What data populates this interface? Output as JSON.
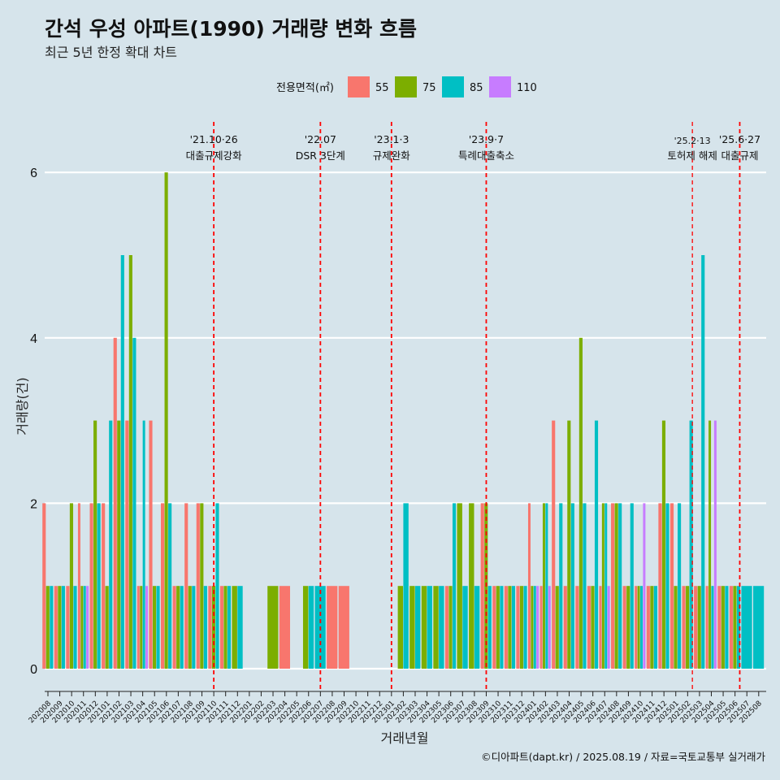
{
  "chart_data": {
    "type": "bar",
    "title": "간석 우성 아파트(1990) 거래량 변화 흐름",
    "subtitle": "최근 5년 한정 확대 차트",
    "xlabel": "거래년월",
    "ylabel": "거래량(건)",
    "ylim": [
      0,
      6.4
    ],
    "yticks": [
      0,
      2,
      4,
      6
    ],
    "legend": {
      "title": "전용면적(㎡)",
      "position": "top"
    },
    "categories": [
      "202008",
      "202009",
      "202010",
      "202011",
      "202012",
      "202101",
      "202102",
      "202103",
      "202104",
      "202105",
      "202106",
      "202107",
      "202108",
      "202109",
      "202110",
      "202111",
      "202112",
      "202201",
      "202202",
      "202203",
      "202204",
      "202205",
      "202206",
      "202207",
      "202208",
      "202209",
      "202210",
      "202211",
      "202212",
      "202301",
      "202302",
      "202303",
      "202304",
      "202305",
      "202306",
      "202307",
      "202308",
      "202309",
      "202310",
      "202311",
      "202312",
      "202401",
      "202402",
      "202403",
      "202404",
      "202405",
      "202406",
      "202407",
      "202408",
      "202409",
      "202410",
      "202411",
      "202412",
      "202501",
      "202502",
      "202503",
      "202504",
      "202505",
      "202506",
      "202507",
      "202508"
    ],
    "series": [
      {
        "name": "55",
        "color": "#f8766d",
        "values": [
          2,
          1,
          1,
          2,
          2,
          2,
          4,
          3,
          1,
          3,
          2,
          1,
          2,
          2,
          1,
          1,
          0,
          0,
          0,
          0,
          1,
          0,
          0,
          0,
          1,
          1,
          0,
          0,
          0,
          0,
          0,
          0,
          0,
          0,
          1,
          0,
          0,
          2,
          1,
          1,
          1,
          2,
          1,
          3,
          1,
          1,
          1,
          1,
          2,
          1,
          1,
          1,
          2,
          2,
          1,
          1,
          1,
          1,
          1,
          0,
          0
        ]
      },
      {
        "name": "75",
        "color": "#7cae00",
        "values": [
          1,
          1,
          2,
          1,
          3,
          1,
          3,
          5,
          1,
          1,
          6,
          1,
          1,
          2,
          1,
          1,
          1,
          0,
          0,
          1,
          0,
          0,
          1,
          0,
          0,
          0,
          0,
          0,
          0,
          0,
          1,
          1,
          1,
          1,
          1,
          2,
          2,
          2,
          1,
          1,
          1,
          1,
          2,
          1,
          3,
          4,
          1,
          2,
          2,
          1,
          1,
          1,
          3,
          1,
          1,
          1,
          3,
          1,
          1,
          0,
          0
        ]
      },
      {
        "name": "85",
        "color": "#00bfc4",
        "values": [
          1,
          1,
          1,
          1,
          2,
          3,
          5,
          4,
          3,
          1,
          2,
          1,
          1,
          1,
          2,
          1,
          1,
          0,
          0,
          0,
          0,
          0,
          1,
          1,
          0,
          0,
          0,
          0,
          0,
          0,
          2,
          1,
          1,
          1,
          2,
          1,
          1,
          1,
          1,
          1,
          1,
          1,
          2,
          2,
          2,
          2,
          3,
          2,
          2,
          2,
          1,
          1,
          2,
          2,
          3,
          5,
          1,
          1,
          1,
          1,
          1
        ],
        "mask": [
          1,
          1,
          1,
          1,
          1,
          1,
          1,
          1,
          1,
          1,
          1,
          1,
          1,
          1,
          1,
          1,
          1,
          0,
          0,
          0,
          0,
          0,
          1,
          1,
          0,
          0,
          0,
          0,
          0,
          0,
          1,
          1,
          1,
          1,
          1,
          1,
          1,
          1,
          1,
          1,
          1,
          1,
          1,
          1,
          1,
          1,
          1,
          1,
          1,
          1,
          1,
          1,
          1,
          1,
          1,
          1,
          1,
          1,
          1,
          1,
          1
        ]
      },
      {
        "name": "110",
        "color": "#c77cff",
        "values": [
          0,
          0,
          0,
          1,
          0,
          0,
          0,
          0,
          1,
          0,
          0,
          0,
          0,
          0,
          0,
          0,
          0,
          0,
          0,
          0,
          0,
          0,
          0,
          0,
          0,
          0,
          0,
          0,
          0,
          0,
          0,
          0,
          0,
          0,
          0,
          0,
          0,
          0,
          0,
          0,
          0,
          1,
          1,
          0,
          0,
          0,
          0,
          1,
          0,
          0,
          2,
          0,
          0,
          0,
          0,
          0,
          3,
          0,
          0,
          0,
          0
        ]
      }
    ],
    "events": [
      {
        "date": "'21.10·26",
        "label": "대출규제강화",
        "index": 14.0
      },
      {
        "date": "'22.07",
        "label": "DSR 3단계",
        "index": 23.0
      },
      {
        "date": "'23.1·3",
        "label": "규제완화",
        "index": 29.0
      },
      {
        "date": "'23.9·7",
        "label": "특례대출축소",
        "index": 37.0
      },
      {
        "date": "'25.2·13",
        "label": "토허제 해제",
        "index": 54.4
      },
      {
        "date": "'25.6·27",
        "label": "대출규제",
        "index": 58.4
      }
    ],
    "caption": "©디아파트(dapt.kr) / 2025.08.19 / 자료=국토교통부 실거래가"
  }
}
